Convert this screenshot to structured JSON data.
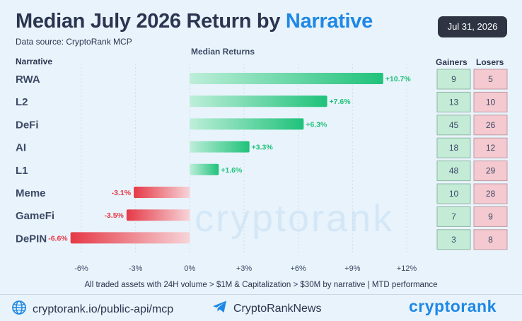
{
  "header": {
    "title_main": "Median July 2026 Return by ",
    "title_highlight": "Narrative",
    "subtitle": "Data source: CryptoRank MCP",
    "date_badge": "Jul 31, 2026"
  },
  "colors": {
    "positive": "#1fc27a",
    "negative": "#e53946",
    "gainers_box": "#c3ebd6",
    "losers_box": "#f5c9d0",
    "accent": "#1e88e5"
  },
  "chart_data": {
    "type": "bar",
    "orientation": "horizontal",
    "category_header": "Narrative",
    "axis_title": "Median Returns",
    "categories": [
      "RWA",
      "L2",
      "DeFi",
      "AI",
      "L1",
      "Meme",
      "GameFi",
      "DePIN"
    ],
    "values": [
      10.7,
      7.6,
      6.3,
      3.3,
      1.6,
      -3.1,
      -3.5,
      -6.6
    ],
    "value_labels": [
      "+10.7%",
      "+7.6%",
      "+6.3%",
      "+3.3%",
      "+1.6%",
      "-3.1%",
      "-3.5%",
      "-6.6%"
    ],
    "xlim": [
      -6,
      12
    ],
    "ticks": [
      -6,
      -3,
      0,
      3,
      6,
      9,
      12
    ],
    "tick_labels": [
      "-6%",
      "-3%",
      "0%",
      "+3%",
      "+6%",
      "+9%",
      "+12%"
    ],
    "grid": true,
    "gainers_header": "Gainers",
    "losers_header": "Losers",
    "gainers": [
      9,
      13,
      45,
      18,
      48,
      10,
      7,
      3
    ],
    "losers": [
      5,
      10,
      26,
      12,
      29,
      28,
      9,
      8
    ]
  },
  "footnote": "All traded assets with 24H volume > $1M & Capitalization > $30M by narrative | MTD performance",
  "footer": {
    "api_link": "cryptorank.io/public-api/mcp",
    "telegram": "CryptoRankNews",
    "brand": "cryptorank"
  },
  "watermark": "cryptorank",
  "icons": {
    "globe": "globe-icon",
    "telegram": "telegram-icon"
  }
}
